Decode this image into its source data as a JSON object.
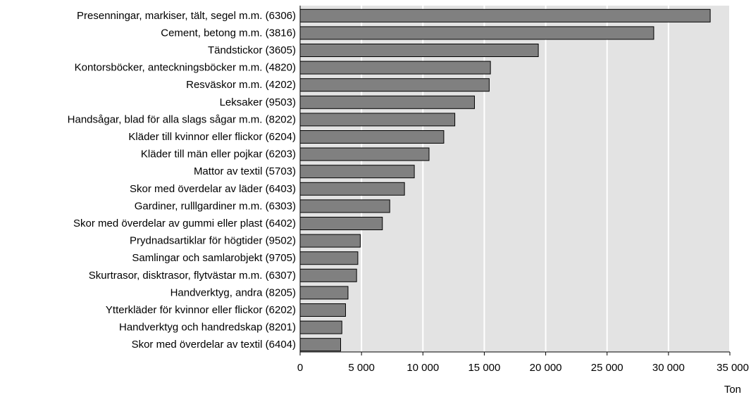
{
  "chart_data": {
    "type": "bar",
    "orientation": "horizontal",
    "title": "",
    "xlabel": "Ton",
    "ylabel": "",
    "xlim": [
      0,
      35000
    ],
    "xticks": [
      0,
      5000,
      10000,
      15000,
      20000,
      25000,
      30000,
      35000
    ],
    "xtick_labels": [
      "0",
      "5 000",
      "10 000",
      "15 000",
      "20 000",
      "25 000",
      "30 000",
      "35 000"
    ],
    "grid": "vertical",
    "colors": {
      "bar_fill": "#808080",
      "bar_stroke": "#000000",
      "plot_background": "#e3e3e3",
      "gridline": "#ffffff"
    },
    "categories": [
      "Presenningar, markiser, tält, segel m.m. (6306)",
      "Cement, betong m.m. (3816)",
      "Tändstickor (3605)",
      "Kontorsböcker, anteckningsböcker m.m. (4820)",
      "Resväskor m.m. (4202)",
      "Leksaker (9503)",
      "Handsågar, blad för alla slags sågar m.m. (8202)",
      "Kläder till kvinnor eller flickor (6204)",
      "Kläder till män eller pojkar (6203)",
      "Mattor av textil (5703)",
      "Skor med överdelar av läder (6403)",
      "Gardiner, rulllgardiner m.m. (6303)",
      "Skor med överdelar av gummi eller plast (6402)",
      "Prydnadsartiklar för högtider (9502)",
      "Samlingar och samlarobjekt (9705)",
      "Skurtrasor, disktrasor, flytvästar m.m. (6307)",
      "Handverktyg, andra (8205)",
      "Ytterkläder för kvinnor eller flickor (6202)",
      "Handverktyg och handredskap (8201)",
      "Skor med överdelar av textil (6404)"
    ],
    "values": [
      33400,
      28800,
      19400,
      15500,
      15400,
      14200,
      12600,
      11700,
      10500,
      9300,
      8500,
      7300,
      6700,
      4900,
      4700,
      4600,
      3900,
      3700,
      3400,
      3300
    ]
  }
}
